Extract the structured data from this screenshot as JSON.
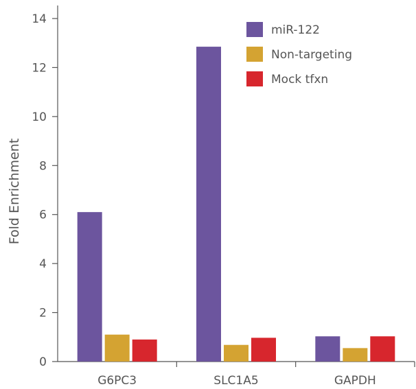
{
  "colors": {
    "axis": "#555555",
    "text": "#555555",
    "background": "#ffffff"
  },
  "chart_data": {
    "type": "bar",
    "title": "",
    "xlabel": "",
    "ylabel": "Fold Enrichment",
    "categories": [
      "G6PC3",
      "SLC1A5",
      "GAPDH"
    ],
    "ylim": [
      0,
      14
    ],
    "yticks": [
      0,
      2,
      4,
      6,
      8,
      10,
      12,
      14
    ],
    "grid": false,
    "legend_position": "top-right",
    "series": [
      {
        "name": "miR-122",
        "color": "#6c559e",
        "values": [
          6.1,
          12.85,
          1.03
        ]
      },
      {
        "name": "Non-targeting",
        "color": "#d4a332",
        "values": [
          1.1,
          0.68,
          0.55
        ]
      },
      {
        "name": "Mock tfxn",
        "color": "#d7262d",
        "values": [
          0.9,
          0.97,
          1.03
        ]
      }
    ]
  }
}
